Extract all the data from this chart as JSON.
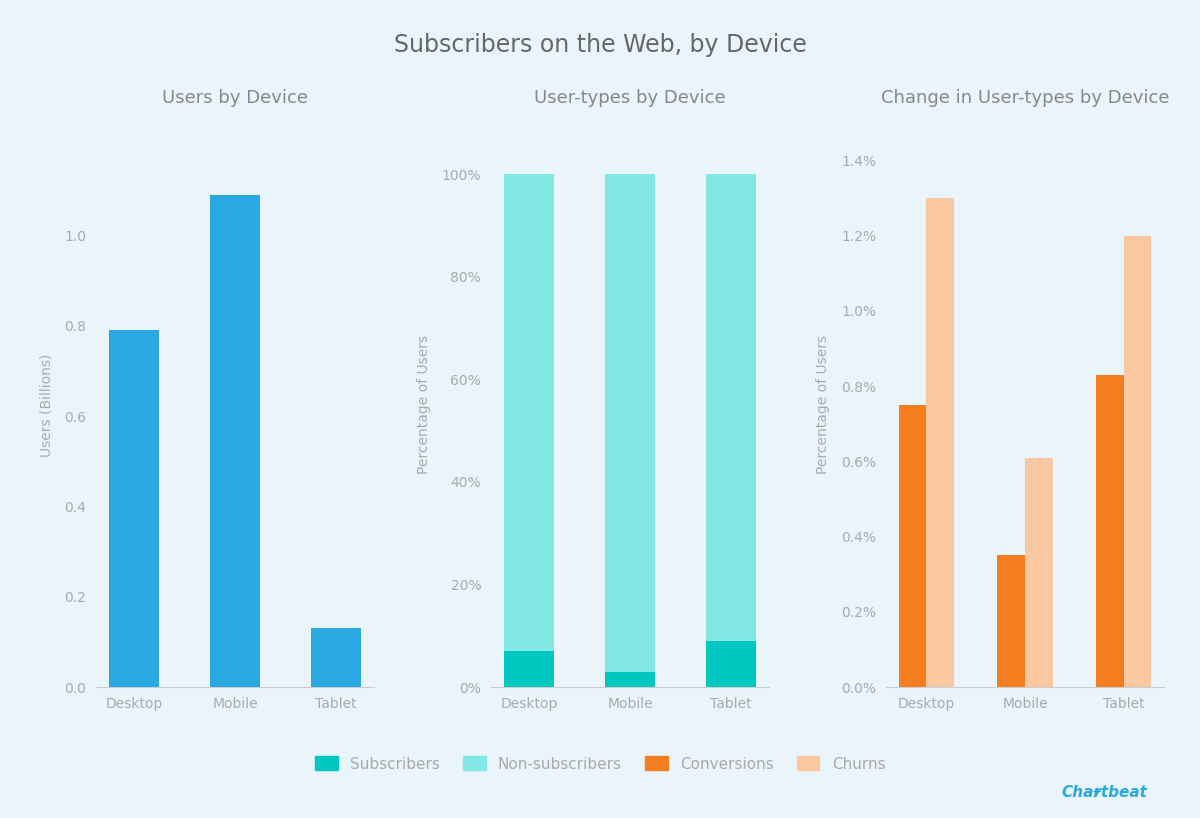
{
  "title": "Subscribers on the Web, by Device",
  "title_fontsize": 17,
  "title_color": "#666666",
  "background_color": "#eaf4fb",
  "panel_color": "#eaf4fb",
  "devices": [
    "Desktop",
    "Mobile",
    "Tablet"
  ],
  "chart1_title": "Users by Device",
  "chart1_values": [
    0.79,
    1.09,
    0.13
  ],
  "chart1_color": "#29A8E2",
  "chart1_ylabel": "Users (Billions)",
  "chart1_ylim": [
    0,
    1.25
  ],
  "chart1_yticks": [
    0.0,
    0.2,
    0.4,
    0.6,
    0.8,
    1.0
  ],
  "chart1_ytick_labels": [
    "0.0",
    "0.2",
    "0.4",
    "0.6",
    "0.8",
    "1.0"
  ],
  "chart2_title": "User-types by Device",
  "chart2_subscribers": [
    0.07,
    0.03,
    0.09
  ],
  "chart2_nonsubs": [
    0.93,
    0.97,
    0.91
  ],
  "chart2_color_subs": "#00C8C0",
  "chart2_color_nonsubs": "#82E8E4",
  "chart2_ylabel": "Percentage of Users",
  "chart2_ylim": [
    0,
    1.1
  ],
  "chart2_yticks": [
    0.0,
    0.2,
    0.4,
    0.6,
    0.8,
    1.0
  ],
  "chart2_ytick_labels": [
    "0%",
    "20%",
    "40%",
    "60%",
    "80%",
    "100%"
  ],
  "chart3_title": "Change in User-types by Device",
  "chart3_conversions": [
    0.0075,
    0.0035,
    0.0083
  ],
  "chart3_churns": [
    0.013,
    0.0061,
    0.012
  ],
  "chart3_color_conversions": "#F47D20",
  "chart3_color_churns": "#F9C8A0",
  "chart3_ylabel": "Percentage of Users",
  "chart3_ylim": [
    0,
    0.015
  ],
  "chart3_yticks": [
    0.0,
    0.002,
    0.004,
    0.006,
    0.008,
    0.01,
    0.012,
    0.014
  ],
  "chart3_ytick_labels": [
    "0.0%",
    "0.2%",
    "0.4%",
    "0.6%",
    "0.8%",
    "1.0%",
    "1.2%",
    "1.4%"
  ],
  "legend_items": [
    "Subscribers",
    "Non-subscribers",
    "Conversions",
    "Churns"
  ],
  "legend_colors": [
    "#00C8C0",
    "#82E8E4",
    "#F47D20",
    "#F9C8A0"
  ],
  "tick_color": "#aaaaaa",
  "label_color": "#aaaaaa",
  "subtitle_color": "#888888"
}
